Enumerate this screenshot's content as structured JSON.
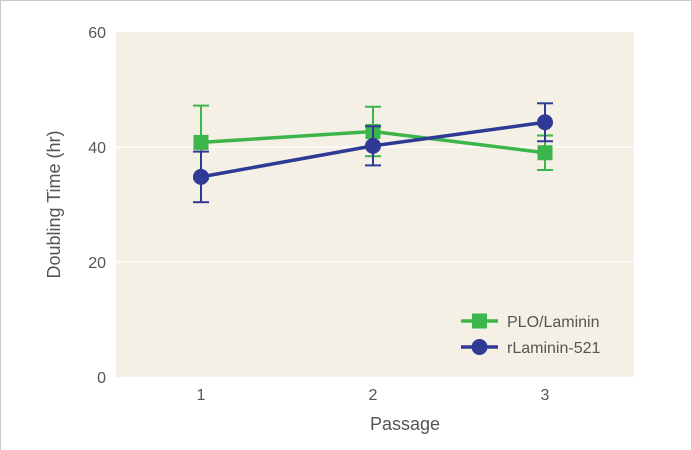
{
  "chart_data": {
    "type": "line",
    "title": "",
    "xlabel": "Passage",
    "ylabel": "Doubling Time (hr)",
    "x": [
      1,
      2,
      3
    ],
    "x_tick_labels": [
      "1",
      "2",
      "3"
    ],
    "ylim": [
      0,
      60
    ],
    "y_ticks": [
      0,
      20,
      40,
      60
    ],
    "y_tick_labels": [
      "0",
      "20",
      "40",
      "60"
    ],
    "grid": "horizontal",
    "legend_position": "bottom-right",
    "series": [
      {
        "name": "PLO/Laminin",
        "color": "#3cb54a",
        "marker": "square",
        "values": [
          40.8,
          42.7,
          39.0
        ],
        "error": [
          6.4,
          4.3,
          3.0
        ]
      },
      {
        "name": "rLaminin-521",
        "color": "#2e3a93",
        "marker": "circle",
        "values": [
          34.8,
          40.2,
          44.3
        ],
        "error": [
          4.4,
          3.4,
          3.3
        ]
      }
    ],
    "plot_background": "#f5f0e6"
  }
}
